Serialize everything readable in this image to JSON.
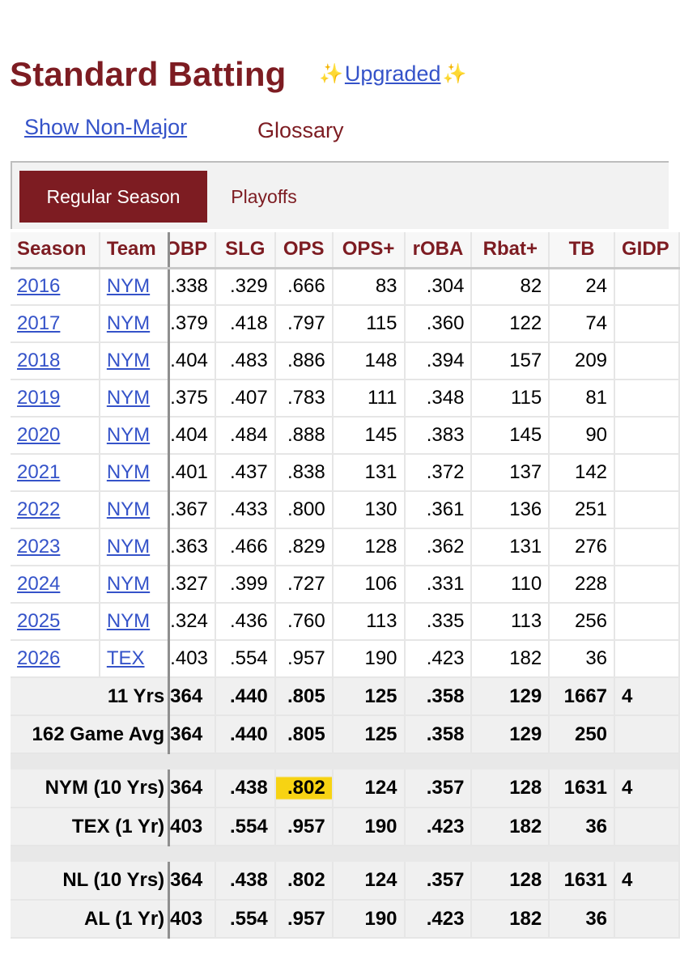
{
  "header": {
    "title": "Standard Batting",
    "upgraded_label": "Upgraded",
    "sparkle": "✨",
    "show_non_major": "Show Non-Major",
    "glossary": "Glossary"
  },
  "tabs": [
    {
      "label": "Regular Season",
      "active": true
    },
    {
      "label": "Playoffs",
      "active": false
    }
  ],
  "columns": [
    "Season",
    "Team",
    "OBP",
    "SLG",
    "OPS",
    "OPS+",
    "rOBA",
    "Rbat+",
    "TB",
    "GIDP"
  ],
  "visible_headers": {
    "obp": "OBP",
    "gidp": "GIDP"
  },
  "rows": [
    {
      "season": "2016",
      "team": "NYM",
      "obp": ".338",
      "slg": ".329",
      "ops": ".666",
      "ops_plus": "83",
      "roba": ".304",
      "rbat": "82",
      "tb": "24",
      "gidp": ""
    },
    {
      "season": "2017",
      "team": "NYM",
      "obp": ".379",
      "slg": ".418",
      "ops": ".797",
      "ops_plus": "115",
      "roba": ".360",
      "rbat": "122",
      "tb": "74",
      "gidp": ""
    },
    {
      "season": "2018",
      "team": "NYM",
      "obp": ".404",
      "slg": ".483",
      "ops": ".886",
      "ops_plus": "148",
      "roba": ".394",
      "rbat": "157",
      "tb": "209",
      "gidp": ""
    },
    {
      "season": "2019",
      "team": "NYM",
      "obp": ".375",
      "slg": ".407",
      "ops": ".783",
      "ops_plus": "111",
      "roba": ".348",
      "rbat": "115",
      "tb": "81",
      "gidp": ""
    },
    {
      "season": "2020",
      "team": "NYM",
      "obp": ".404",
      "slg": ".484",
      "ops": ".888",
      "ops_plus": "145",
      "roba": ".383",
      "rbat": "145",
      "tb": "90",
      "gidp": ""
    },
    {
      "season": "2021",
      "team": "NYM",
      "obp": ".401",
      "slg": ".437",
      "ops": ".838",
      "ops_plus": "131",
      "roba": ".372",
      "rbat": "137",
      "tb": "142",
      "gidp": ""
    },
    {
      "season": "2022",
      "team": "NYM",
      "obp": ".367",
      "slg": ".433",
      "ops": ".800",
      "ops_plus": "130",
      "roba": ".361",
      "rbat": "136",
      "tb": "251",
      "gidp": ""
    },
    {
      "season": "2023",
      "team": "NYM",
      "obp": ".363",
      "slg": ".466",
      "ops": ".829",
      "ops_plus": "128",
      "roba": ".362",
      "rbat": "131",
      "tb": "276",
      "gidp": ""
    },
    {
      "season": "2024",
      "team": "NYM",
      "obp": ".327",
      "slg": ".399",
      "ops": ".727",
      "ops_plus": "106",
      "roba": ".331",
      "rbat": "110",
      "tb": "228",
      "gidp": ""
    },
    {
      "season": "2025",
      "team": "NYM",
      "obp": ".324",
      "slg": ".436",
      "ops": ".760",
      "ops_plus": "113",
      "roba": ".335",
      "rbat": "113",
      "tb": "256",
      "gidp": ""
    },
    {
      "season": "2026",
      "team": "TEX",
      "obp": ".403",
      "slg": ".554",
      "ops": ".957",
      "ops_plus": "190",
      "roba": ".423",
      "rbat": "182",
      "tb": "36",
      "gidp": ""
    }
  ],
  "summary_groups": [
    [
      {
        "label": "11 Yrs",
        "obp": "364",
        "slg": ".440",
        "ops": ".805",
        "ops_plus": "125",
        "roba": ".358",
        "rbat": "129",
        "tb": "1667",
        "gidp": "4"
      },
      {
        "label": "162 Game Avg",
        "obp": "364",
        "slg": ".440",
        "ops": ".805",
        "ops_plus": "125",
        "roba": ".358",
        "rbat": "129",
        "tb": "250",
        "gidp": ""
      }
    ],
    [
      {
        "label": "NYM (10 Yrs)",
        "obp": "364",
        "slg": ".438",
        "ops": ".802",
        "ops_plus": "124",
        "roba": ".357",
        "rbat": "128",
        "tb": "1631",
        "gidp": "4",
        "highlight_ops": true
      },
      {
        "label": "TEX (1 Yr)",
        "obp": "403",
        "slg": ".554",
        "ops": ".957",
        "ops_plus": "190",
        "roba": ".423",
        "rbat": "182",
        "tb": "36",
        "gidp": ""
      }
    ],
    [
      {
        "label": "NL (10 Yrs)",
        "obp": "364",
        "slg": ".438",
        "ops": ".802",
        "ops_plus": "124",
        "roba": ".357",
        "rbat": "128",
        "tb": "1631",
        "gidp": "4"
      },
      {
        "label": "AL (1 Yr)",
        "obp": "403",
        "slg": ".554",
        "ops": ".957",
        "ops_plus": "190",
        "roba": ".423",
        "rbat": "182",
        "tb": "36",
        "gidp": ""
      }
    ]
  ],
  "colors": {
    "brand": "#7d1c22",
    "link": "#3553c9",
    "highlight": "#f7d313"
  }
}
